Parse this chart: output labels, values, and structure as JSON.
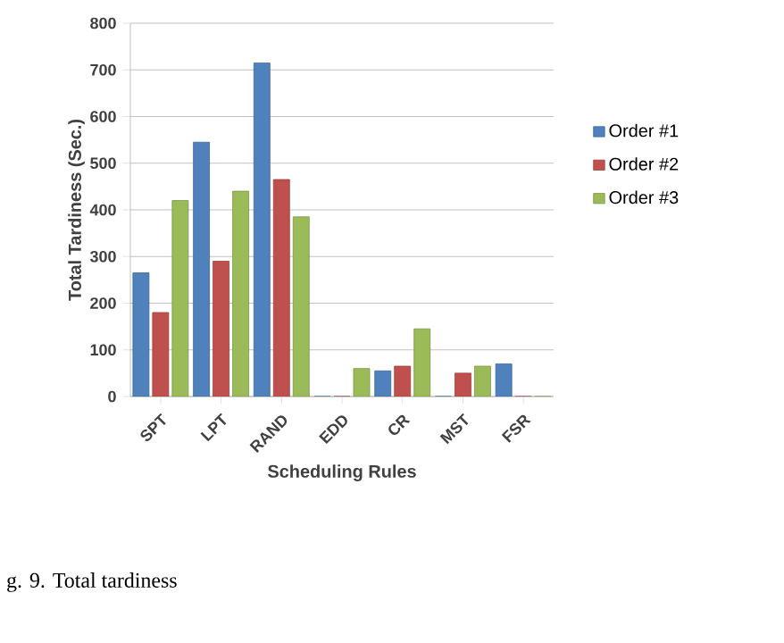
{
  "chart_data": {
    "type": "bar",
    "xlabel": "Scheduling Rules",
    "ylabel": "Total Tardiness (Sec.)",
    "annotations": [
      "g. 9. Total tardiness"
    ],
    "categories": [
      "SPT",
      "LPT",
      "RAND",
      "EDD",
      "CR",
      "MST",
      "FSR"
    ],
    "series": [
      {
        "name": "Order #1",
        "color": "#4f81bd",
        "values": [
          265,
          545,
          715,
          0,
          55,
          0,
          70
        ]
      },
      {
        "name": "Order #2",
        "color": "#c0504d",
        "values": [
          180,
          290,
          465,
          0,
          65,
          50,
          0
        ]
      },
      {
        "name": "Order #3",
        "color": "#9bbb59",
        "values": [
          420,
          440,
          385,
          60,
          145,
          65,
          0
        ]
      }
    ],
    "ylim": [
      0,
      800
    ],
    "yticks": [
      0,
      100,
      200,
      300,
      400,
      500,
      600,
      700,
      800
    ],
    "grid": "y",
    "legend": "right"
  }
}
